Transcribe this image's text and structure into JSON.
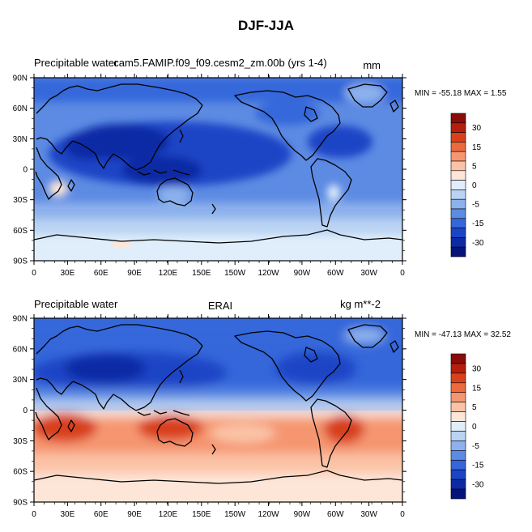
{
  "title": "DJF-JJA",
  "panels": [
    {
      "left_label": "Precipitable water",
      "center_label": "cam5.FAMIP.f09_f09.cesm2_zm.00b (yrs 1-4)",
      "right_label": "mm",
      "minmax": "MIN = -55.18 MAX =   1.55"
    },
    {
      "left_label": "Precipitable water",
      "center_label": "ERAI",
      "right_label": "kg m**-2",
      "minmax": "MIN = -47.13 MAX = 32.52"
    }
  ],
  "lat_ticks": [
    "90N",
    "60N",
    "30N",
    "0",
    "30S",
    "60S",
    "90S"
  ],
  "lon_ticks": [
    "0",
    "30E",
    "60E",
    "90E",
    "120E",
    "150E",
    "150W",
    "120W",
    "90W",
    "60W",
    "30W",
    "0"
  ],
  "colorbar": {
    "labels": [
      "30",
      "15",
      "5",
      "0",
      "-5",
      "-15",
      "-30"
    ],
    "colors": [
      "#8b0a0a",
      "#b51d0c",
      "#d8411c",
      "#ec6a3e",
      "#f59671",
      "#fbc3a6",
      "#fde6d8",
      "#dfeefa",
      "#b9d3f3",
      "#8cb1ec",
      "#5d8be3",
      "#3567da",
      "#1c44c6",
      "#0d2aa5",
      "#06137a"
    ]
  },
  "chart_data": [
    {
      "type": "heatmap",
      "projection": "cylindrical-equidistant",
      "title": "cam5.FAMIP.f09_f09.cesm2_zm.00b (yrs 1-4)",
      "variable": "Precipitable water",
      "units": "mm",
      "xlim": [
        0,
        360
      ],
      "ylim": [
        -90,
        90
      ],
      "min": -55.18,
      "max": 1.55
    },
    {
      "type": "heatmap",
      "projection": "cylindrical-equidistant",
      "title": "ERAI",
      "variable": "Precipitable water",
      "units": "kg m**-2",
      "xlim": [
        0,
        360
      ],
      "ylim": [
        -90,
        90
      ],
      "min": -47.13,
      "max": 32.52
    }
  ]
}
